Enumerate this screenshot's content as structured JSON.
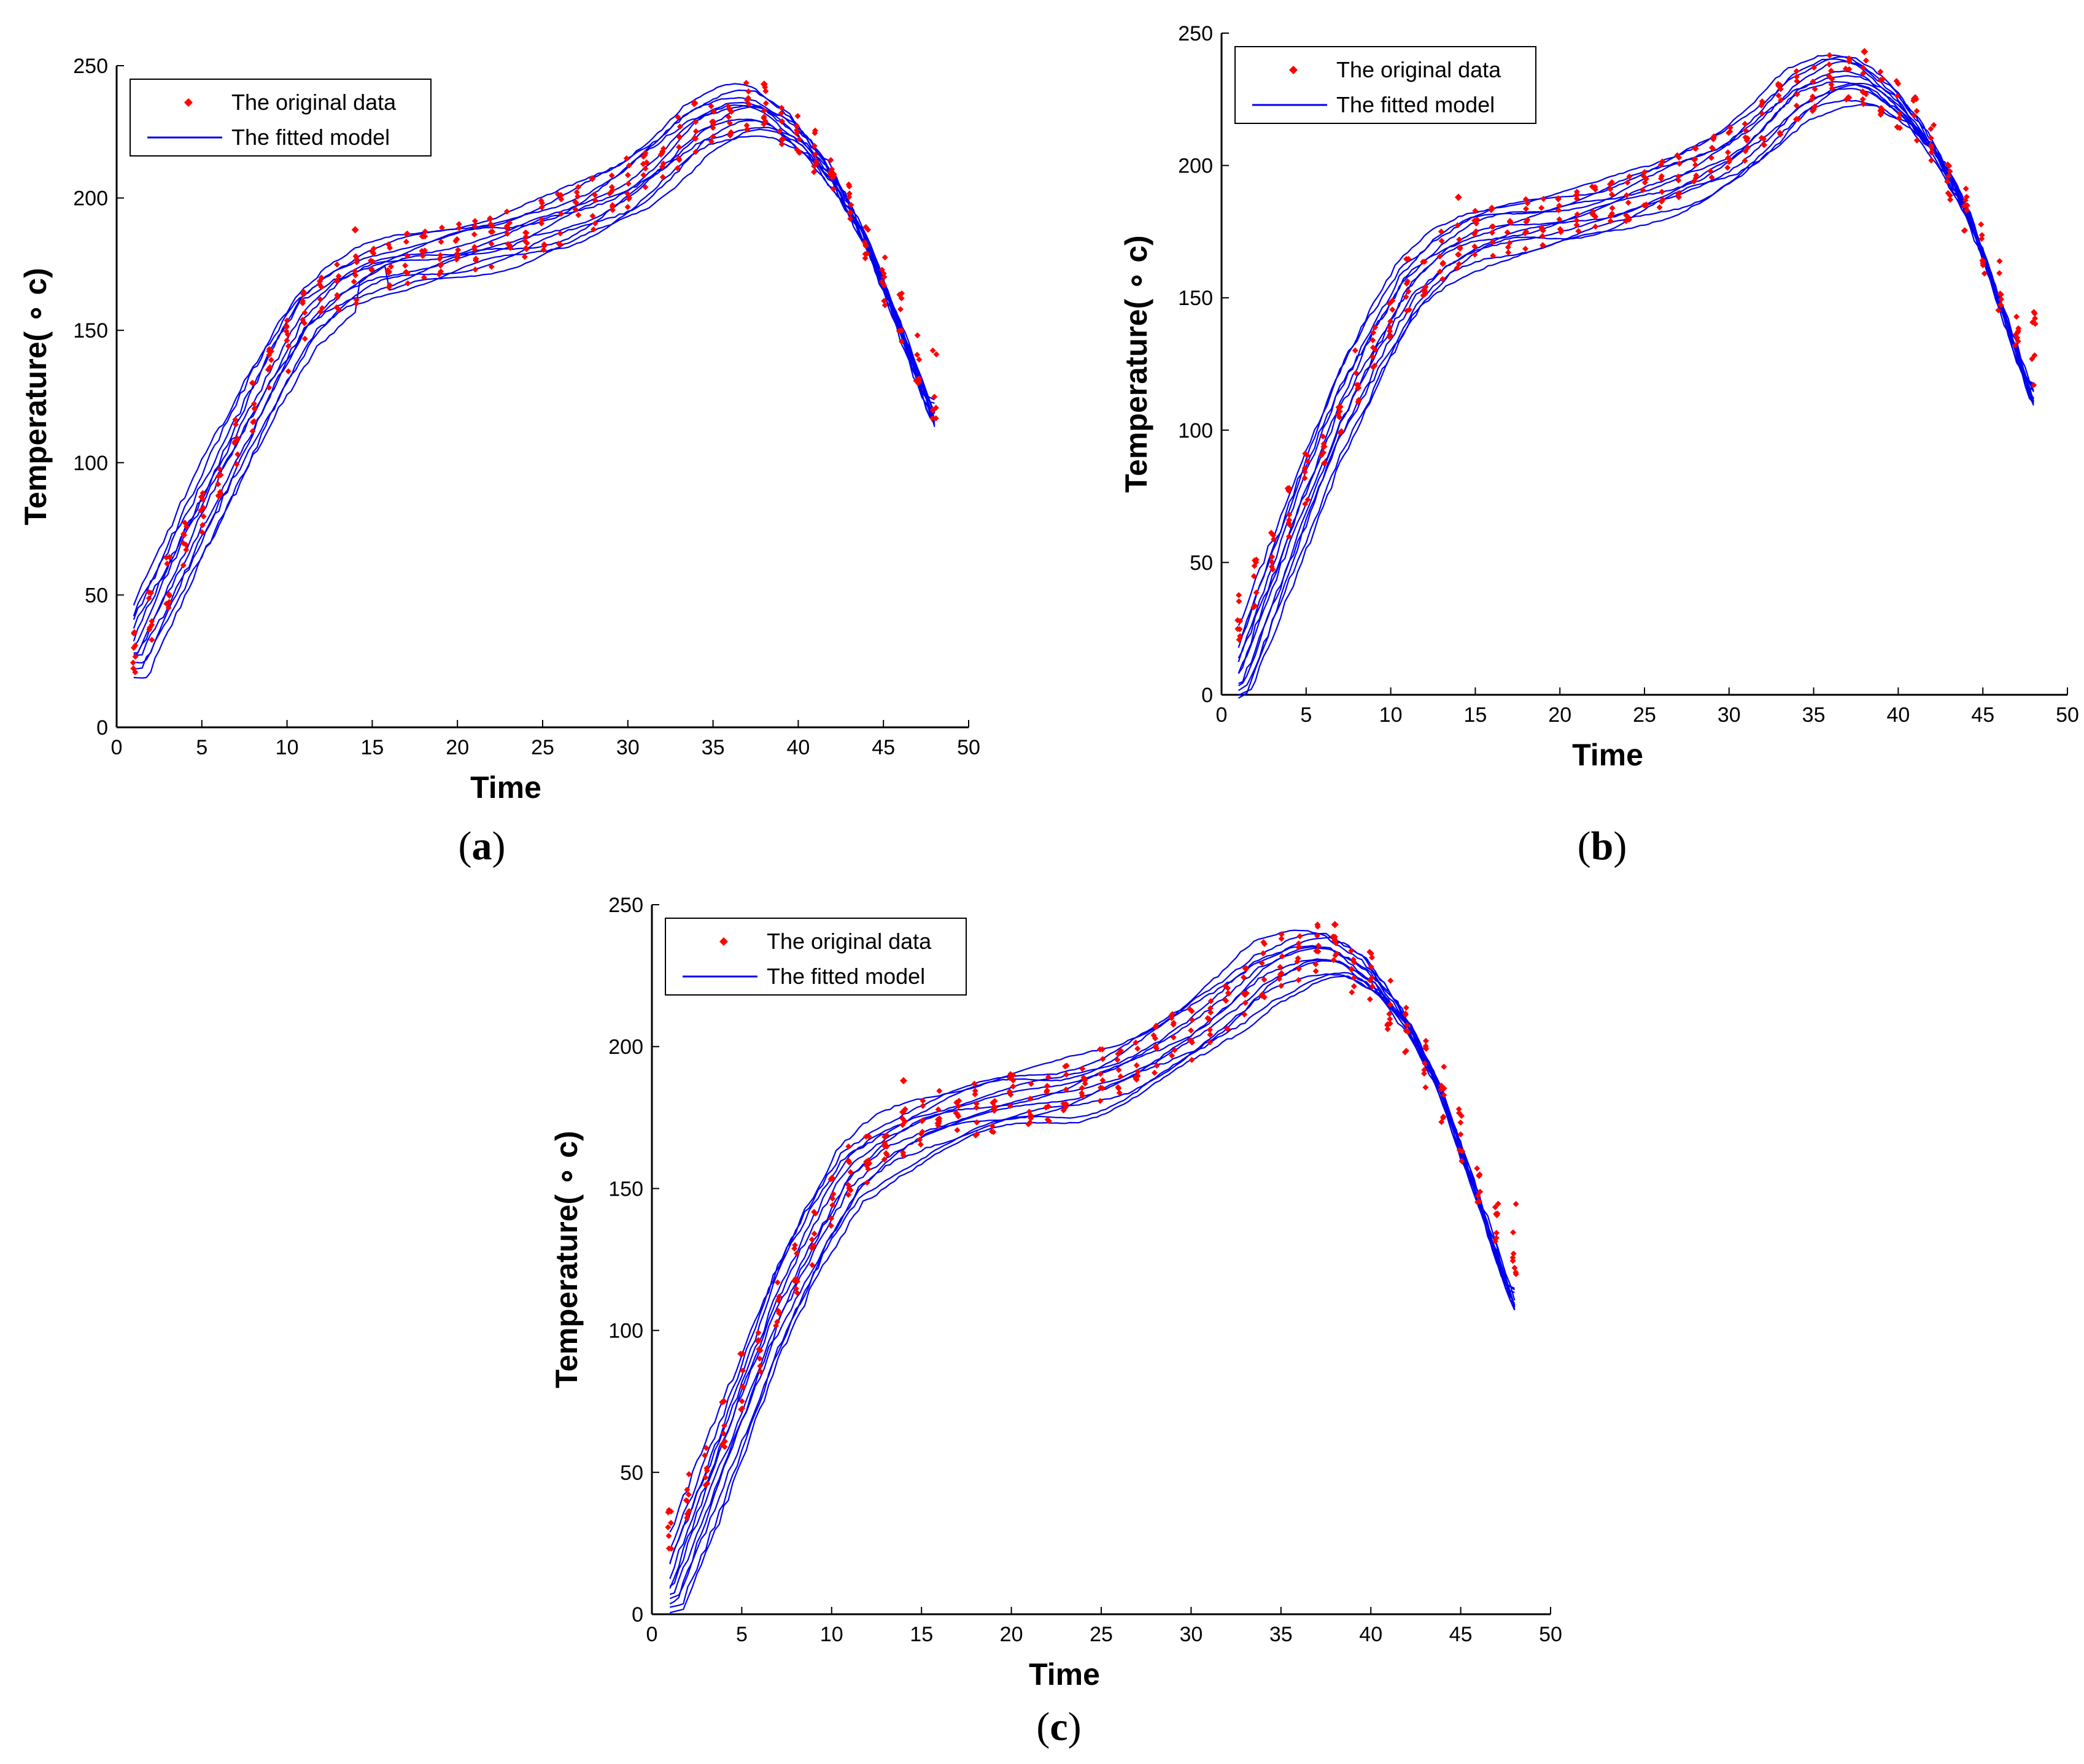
{
  "colors": {
    "data_marker": "#ff0000",
    "fitted_line": "#0000ee",
    "axes": "#000000"
  },
  "chart_data": [
    {
      "panel": "a",
      "type": "scatter+line",
      "caption_letter": "a",
      "xlabel": "Time",
      "ylabel": "Temperature( ∘ c)",
      "xlim": [
        0,
        50
      ],
      "ylim": [
        0,
        250
      ],
      "xticks": [
        "0",
        "5",
        "10",
        "15",
        "20",
        "25",
        "30",
        "35",
        "40",
        "45",
        "50"
      ],
      "yticks": [
        "0",
        "50",
        "100",
        "150",
        "200",
        "250"
      ],
      "legend": {
        "placement": "top-left",
        "entries": [
          "The original data",
          "The fitted model"
        ]
      },
      "outliers": [
        [
          14,
          188
        ],
        [
          38,
          243
        ]
      ],
      "fit_endpoints": {
        "start": [
          1,
          30
        ],
        "end": [
          48,
          115
        ]
      },
      "series_count": 12
    },
    {
      "panel": "b",
      "type": "scatter+line",
      "caption_letter": "b",
      "xlabel": "Time",
      "ylabel": "Temperature( ∘ c)",
      "xlim": [
        0,
        50
      ],
      "ylim": [
        0,
        250
      ],
      "xticks": [
        "0",
        "5",
        "10",
        "15",
        "20",
        "25",
        "30",
        "35",
        "40",
        "45",
        "50"
      ],
      "yticks": [
        "0",
        "50",
        "100",
        "150",
        "200",
        "250"
      ],
      "legend": {
        "placement": "top-left",
        "entries": [
          "The original data",
          "The fitted model"
        ]
      },
      "outliers": [
        [
          14,
          188
        ],
        [
          38,
          243
        ]
      ],
      "fit_endpoints": {
        "start": [
          1,
          8
        ],
        "end": [
          48,
          110
        ]
      },
      "series_count": 12
    },
    {
      "panel": "c",
      "type": "scatter+line",
      "caption_letter": "c",
      "xlabel": "Time",
      "ylabel": "Temperature( ∘ c)",
      "xlim": [
        0,
        50
      ],
      "ylim": [
        0,
        250
      ],
      "xticks": [
        "0",
        "5",
        "10",
        "15",
        "20",
        "25",
        "30",
        "35",
        "40",
        "45",
        "50"
      ],
      "yticks": [
        "0",
        "50",
        "100",
        "150",
        "200",
        "250"
      ],
      "legend": {
        "placement": "top-left",
        "entries": [
          "The original data",
          "The fitted model"
        ]
      },
      "outliers": [
        [
          14,
          188
        ],
        [
          38,
          243
        ]
      ],
      "fit_endpoints": {
        "start": [
          1,
          10
        ],
        "end": [
          48,
          108
        ]
      },
      "series_count": 12
    }
  ],
  "base_curve": [
    [
      1,
      28
    ],
    [
      3,
      55
    ],
    [
      5,
      82
    ],
    [
      7,
      108
    ],
    [
      9,
      133
    ],
    [
      11,
      155
    ],
    [
      13,
      166
    ],
    [
      15,
      173
    ],
    [
      17,
      177
    ],
    [
      20,
      181
    ],
    [
      23,
      185
    ],
    [
      26,
      192
    ],
    [
      28,
      198
    ],
    [
      30,
      205
    ],
    [
      32,
      215
    ],
    [
      34,
      227
    ],
    [
      36,
      233
    ],
    [
      37,
      234
    ],
    [
      38,
      233
    ],
    [
      40,
      224
    ],
    [
      42,
      208
    ],
    [
      44,
      183
    ],
    [
      46,
      155
    ],
    [
      48,
      125
    ]
  ]
}
